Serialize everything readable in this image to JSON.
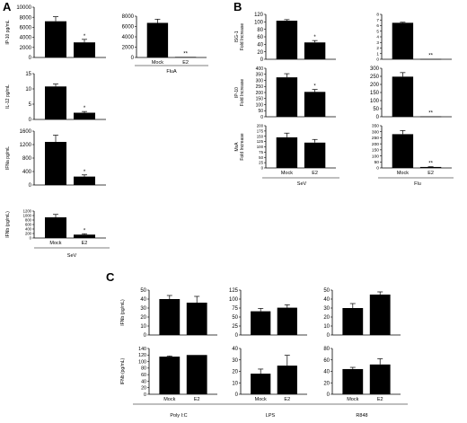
{
  "figure": {
    "panel_letters": [
      "A",
      "B",
      "C"
    ],
    "colors": {
      "bar": "#000000",
      "axis": "#000000",
      "background": "#ffffff"
    }
  },
  "chart_data": [
    {
      "id": "A1",
      "type": "bar",
      "panel": "A",
      "ylabel": "IP-10 pg/mL",
      "yticks": [
        0,
        2000,
        4000,
        6000,
        8000,
        10000
      ],
      "ylim": [
        0,
        10000
      ],
      "categories": [
        "",
        ""
      ],
      "values": [
        7200,
        3000
      ],
      "errors": [
        900,
        600
      ],
      "annotations": [
        "",
        "*"
      ]
    },
    {
      "id": "A2",
      "type": "bar",
      "panel": "A",
      "ylabel": "",
      "yticks": [
        0,
        2000,
        4000,
        6000,
        8000
      ],
      "ylim": [
        0,
        8000
      ],
      "categories": [
        "Mock",
        "E2"
      ],
      "values": [
        6700,
        100
      ],
      "errors": [
        700,
        0
      ],
      "annotations": [
        "",
        "**"
      ],
      "group_label": "FluA"
    },
    {
      "id": "A3",
      "type": "bar",
      "panel": "A",
      "ylabel": "IL-12 pg/mL",
      "yticks": [
        0,
        5,
        10,
        15
      ],
      "ylim": [
        0,
        15
      ],
      "categories": [
        "",
        ""
      ],
      "values": [
        10.8,
        2.2
      ],
      "errors": [
        0.8,
        0.4
      ],
      "annotations": [
        "",
        "*"
      ]
    },
    {
      "id": "A4",
      "type": "bar",
      "panel": "A",
      "ylabel": "IFNa pg/mL",
      "yticks": [
        0,
        400,
        800,
        1200,
        1600
      ],
      "ylim": [
        0,
        1600
      ],
      "categories": [
        "",
        ""
      ],
      "values": [
        1280,
        250
      ],
      "errors": [
        200,
        50
      ],
      "annotations": [
        "",
        "*"
      ]
    },
    {
      "id": "A5",
      "type": "bar",
      "panel": "A",
      "ylabel": "IFNb (pg/mL)",
      "yticks": [
        0,
        200,
        400,
        600,
        800,
        1000,
        1200
      ],
      "ylim": [
        0,
        1200
      ],
      "categories": [
        "Mock",
        "E2"
      ],
      "values": [
        920,
        150
      ],
      "errors": [
        130,
        40
      ],
      "annotations": [
        "",
        "*"
      ],
      "group_label": "SeV"
    },
    {
      "id": "B1",
      "type": "bar",
      "panel": "B",
      "ylabel": [
        "ISG-1",
        "Fold Increase"
      ],
      "yticks": [
        0,
        20,
        40,
        60,
        80,
        100,
        120
      ],
      "ylim": [
        0,
        120
      ],
      "categories": [
        "",
        ""
      ],
      "values": [
        103,
        45
      ],
      "errors": [
        3,
        5
      ],
      "annotations": [
        "",
        "*"
      ]
    },
    {
      "id": "B2",
      "type": "bar",
      "panel": "B",
      "ylabel": "",
      "yticks": [
        0,
        1,
        2,
        3,
        4,
        5,
        6,
        7,
        8
      ],
      "ylim": [
        0,
        8
      ],
      "categories": [
        "",
        ""
      ],
      "values": [
        6.5,
        0.05
      ],
      "errors": [
        0.1,
        0
      ],
      "annotations": [
        "",
        "**"
      ]
    },
    {
      "id": "B3",
      "type": "bar",
      "panel": "B",
      "ylabel": [
        "IP-10",
        "Fold Increase"
      ],
      "yticks": [
        0,
        50,
        100,
        150,
        200,
        250,
        300,
        350,
        400
      ],
      "ylim": [
        0,
        400
      ],
      "categories": [
        "",
        ""
      ],
      "values": [
        325,
        205
      ],
      "errors": [
        30,
        20
      ],
      "annotations": [
        "",
        "*"
      ]
    },
    {
      "id": "B4",
      "type": "bar",
      "panel": "B",
      "ylabel": "",
      "yticks": [
        0,
        50,
        100,
        150,
        200,
        250,
        300
      ],
      "ylim": [
        0,
        300
      ],
      "categories": [
        "",
        ""
      ],
      "values": [
        248,
        2
      ],
      "errors": [
        25,
        0
      ],
      "annotations": [
        "",
        "**"
      ]
    },
    {
      "id": "B5",
      "type": "bar",
      "panel": "B",
      "ylabel": [
        "MxA",
        "Fold Increase"
      ],
      "yticks": [
        0,
        25,
        50,
        75,
        100,
        125,
        150,
        175,
        200
      ],
      "ylim": [
        0,
        200
      ],
      "categories": [
        "Mock",
        "E2"
      ],
      "values": [
        145,
        120
      ],
      "errors": [
        20,
        15
      ],
      "annotations": [
        "",
        ""
      ],
      "group_label": "SeV"
    },
    {
      "id": "B6",
      "type": "bar",
      "panel": "B",
      "ylabel": "",
      "yticks": [
        0,
        50,
        100,
        150,
        200,
        250,
        300,
        350
      ],
      "ylim": [
        0,
        350
      ],
      "categories": [
        "Mock",
        "E2"
      ],
      "values": [
        280,
        8
      ],
      "errors": [
        30,
        2
      ],
      "annotations": [
        "",
        "**"
      ],
      "group_label": "Flu"
    },
    {
      "id": "C1",
      "type": "bar",
      "panel": "C",
      "ylabel": "IFNb (pg/mL)",
      "yticks": [
        0,
        10,
        20,
        30,
        40,
        50
      ],
      "ylim": [
        0,
        50
      ],
      "categories": [
        "",
        ""
      ],
      "values": [
        40,
        36
      ],
      "errors": [
        4,
        7
      ],
      "annotations": [
        "",
        ""
      ]
    },
    {
      "id": "C2",
      "type": "bar",
      "panel": "C",
      "ylabel": "",
      "yticks": [
        0,
        25,
        50,
        75,
        100,
        125
      ],
      "ylim": [
        0,
        125
      ],
      "categories": [
        "",
        ""
      ],
      "values": [
        66,
        76
      ],
      "errors": [
        8,
        8
      ],
      "annotations": [
        "",
        ""
      ]
    },
    {
      "id": "C3",
      "type": "bar",
      "panel": "C",
      "ylabel": "",
      "yticks": [
        0,
        10,
        20,
        30,
        40,
        50
      ],
      "ylim": [
        0,
        50
      ],
      "categories": [
        "",
        ""
      ],
      "values": [
        30,
        45
      ],
      "errors": [
        5,
        3
      ],
      "annotations": [
        "",
        ""
      ]
    },
    {
      "id": "C4",
      "type": "bar",
      "panel": "C",
      "ylabel": "IFNb (pg/mL)",
      "yticks": [
        0,
        20,
        40,
        60,
        80,
        100,
        120,
        140
      ],
      "ylim": [
        0,
        140
      ],
      "categories": [
        "Mock",
        "E2"
      ],
      "values": [
        115,
        120
      ],
      "errors": [
        2,
        0
      ],
      "annotations": [
        "",
        ""
      ],
      "group_label": "Poly I:C"
    },
    {
      "id": "C5",
      "type": "bar",
      "panel": "C",
      "ylabel": "",
      "yticks": [
        0,
        10,
        20,
        30,
        40
      ],
      "ylim": [
        0,
        40
      ],
      "categories": [
        "Mock",
        "E2"
      ],
      "values": [
        18,
        25
      ],
      "errors": [
        4,
        9
      ],
      "annotations": [
        "",
        ""
      ],
      "group_label": "LPS"
    },
    {
      "id": "C6",
      "type": "bar",
      "panel": "C",
      "ylabel": "",
      "yticks": [
        0,
        20,
        40,
        60,
        80
      ],
      "ylim": [
        0,
        80
      ],
      "categories": [
        "Mock",
        "E2"
      ],
      "values": [
        44,
        52
      ],
      "errors": [
        3,
        10
      ],
      "annotations": [
        "",
        ""
      ],
      "group_label": "R848"
    }
  ]
}
